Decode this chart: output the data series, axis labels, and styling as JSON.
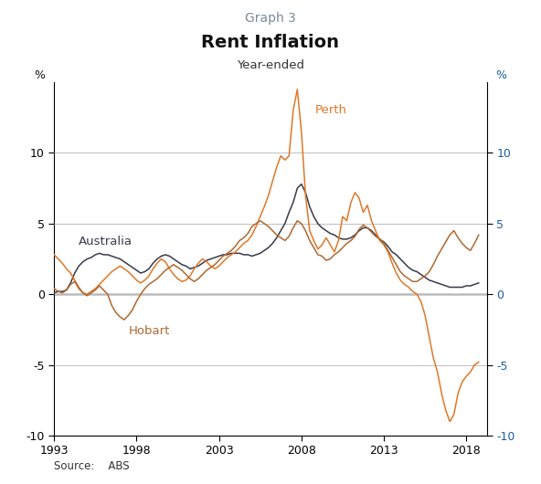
{
  "title_graph": "Graph 3",
  "title_main": "Rent Inflation",
  "title_sub": "Year-ended",
  "source": "Source:    ABS",
  "ylabel_left": "%",
  "ylabel_right": "%",
  "xlim": [
    1993.0,
    2019.25
  ],
  "ylim": [
    -10,
    15
  ],
  "yticks": [
    -10,
    -5,
    0,
    5,
    10
  ],
  "xticks": [
    1993,
    1998,
    2003,
    2008,
    2013,
    2018
  ],
  "color_australia": "#3a3a4a",
  "color_perth": "#e07828",
  "color_hobart": "#b06830",
  "color_right_axis": "#1a5fa0",
  "australia_label": "Australia",
  "perth_label": "Perth",
  "hobart_label": "Hobart",
  "australia_years": [
    1993.0,
    1993.25,
    1993.5,
    1993.75,
    1994.0,
    1994.25,
    1994.5,
    1994.75,
    1995.0,
    1995.25,
    1995.5,
    1995.75,
    1996.0,
    1996.25,
    1996.5,
    1996.75,
    1997.0,
    1997.25,
    1997.5,
    1997.75,
    1998.0,
    1998.25,
    1998.5,
    1998.75,
    1999.0,
    1999.25,
    1999.5,
    1999.75,
    2000.0,
    2000.25,
    2000.5,
    2000.75,
    2001.0,
    2001.25,
    2001.5,
    2001.75,
    2002.0,
    2002.25,
    2002.5,
    2002.75,
    2003.0,
    2003.25,
    2003.5,
    2003.75,
    2004.0,
    2004.25,
    2004.5,
    2004.75,
    2005.0,
    2005.25,
    2005.5,
    2005.75,
    2006.0,
    2006.25,
    2006.5,
    2006.75,
    2007.0,
    2007.25,
    2007.5,
    2007.75,
    2008.0,
    2008.25,
    2008.5,
    2008.75,
    2009.0,
    2009.25,
    2009.5,
    2009.75,
    2010.0,
    2010.25,
    2010.5,
    2010.75,
    2011.0,
    2011.25,
    2011.5,
    2011.75,
    2012.0,
    2012.25,
    2012.5,
    2012.75,
    2013.0,
    2013.25,
    2013.5,
    2013.75,
    2014.0,
    2014.25,
    2014.5,
    2014.75,
    2015.0,
    2015.25,
    2015.5,
    2015.75,
    2016.0,
    2016.25,
    2016.5,
    2016.75,
    2017.0,
    2017.25,
    2017.5,
    2017.75,
    2018.0,
    2018.25,
    2018.5,
    2018.75
  ],
  "australia_values": [
    0.1,
    0.2,
    0.2,
    0.3,
    0.8,
    1.5,
    2.0,
    2.3,
    2.5,
    2.6,
    2.8,
    2.9,
    2.8,
    2.8,
    2.7,
    2.6,
    2.5,
    2.3,
    2.1,
    1.9,
    1.7,
    1.5,
    1.6,
    1.8,
    2.2,
    2.5,
    2.7,
    2.8,
    2.7,
    2.5,
    2.3,
    2.1,
    2.0,
    1.8,
    1.9,
    2.0,
    2.2,
    2.4,
    2.5,
    2.6,
    2.7,
    2.8,
    2.8,
    2.9,
    2.9,
    2.9,
    2.8,
    2.8,
    2.7,
    2.8,
    2.9,
    3.1,
    3.3,
    3.6,
    4.0,
    4.5,
    5.0,
    5.8,
    6.5,
    7.5,
    7.8,
    7.2,
    6.2,
    5.5,
    5.0,
    4.7,
    4.5,
    4.3,
    4.2,
    4.0,
    3.9,
    3.9,
    4.0,
    4.2,
    4.5,
    4.7,
    4.7,
    4.5,
    4.2,
    3.9,
    3.7,
    3.4,
    3.0,
    2.8,
    2.5,
    2.2,
    1.9,
    1.7,
    1.6,
    1.4,
    1.2,
    1.0,
    0.9,
    0.8,
    0.7,
    0.6,
    0.5,
    0.5,
    0.5,
    0.5,
    0.6,
    0.6,
    0.7,
    0.8
  ],
  "perth_years": [
    1993.0,
    1993.25,
    1993.5,
    1993.75,
    1994.0,
    1994.25,
    1994.5,
    1994.75,
    1995.0,
    1995.25,
    1995.5,
    1995.75,
    1996.0,
    1996.25,
    1996.5,
    1996.75,
    1997.0,
    1997.25,
    1997.5,
    1997.75,
    1998.0,
    1998.25,
    1998.5,
    1998.75,
    1999.0,
    1999.25,
    1999.5,
    1999.75,
    2000.0,
    2000.25,
    2000.5,
    2000.75,
    2001.0,
    2001.25,
    2001.5,
    2001.75,
    2002.0,
    2002.25,
    2002.5,
    2002.75,
    2003.0,
    2003.25,
    2003.5,
    2003.75,
    2004.0,
    2004.25,
    2004.5,
    2004.75,
    2005.0,
    2005.25,
    2005.5,
    2005.75,
    2006.0,
    2006.25,
    2006.5,
    2006.75,
    2007.0,
    2007.25,
    2007.5,
    2007.75,
    2008.0,
    2008.25,
    2008.5,
    2008.75,
    2009.0,
    2009.25,
    2009.5,
    2009.75,
    2010.0,
    2010.25,
    2010.5,
    2010.75,
    2011.0,
    2011.25,
    2011.5,
    2011.75,
    2012.0,
    2012.25,
    2012.5,
    2012.75,
    2013.0,
    2013.25,
    2013.5,
    2013.75,
    2014.0,
    2014.25,
    2014.5,
    2014.75,
    2015.0,
    2015.25,
    2015.5,
    2015.75,
    2016.0,
    2016.25,
    2016.5,
    2016.75,
    2017.0,
    2017.25,
    2017.5,
    2017.75,
    2018.0,
    2018.25,
    2018.5,
    2018.75
  ],
  "perth_values": [
    2.8,
    2.5,
    2.2,
    1.8,
    1.5,
    1.0,
    0.5,
    0.1,
    0.0,
    0.2,
    0.4,
    0.7,
    1.0,
    1.3,
    1.6,
    1.8,
    2.0,
    1.8,
    1.6,
    1.3,
    1.0,
    0.8,
    1.0,
    1.3,
    1.8,
    2.2,
    2.5,
    2.3,
    1.8,
    1.4,
    1.1,
    0.9,
    1.0,
    1.3,
    1.8,
    2.2,
    2.5,
    2.3,
    2.0,
    1.8,
    2.0,
    2.3,
    2.6,
    2.8,
    3.0,
    3.3,
    3.6,
    3.8,
    4.2,
    4.8,
    5.5,
    6.2,
    7.0,
    8.0,
    9.0,
    9.8,
    9.5,
    9.8,
    13.0,
    14.5,
    11.5,
    7.0,
    4.5,
    3.8,
    3.2,
    3.5,
    4.0,
    3.5,
    3.0,
    3.8,
    5.5,
    5.2,
    6.5,
    7.2,
    6.8,
    5.8,
    6.3,
    5.2,
    4.5,
    3.8,
    3.5,
    3.0,
    2.2,
    1.5,
    1.0,
    0.7,
    0.5,
    0.2,
    0.0,
    -0.5,
    -1.5,
    -3.0,
    -4.5,
    -5.5,
    -7.0,
    -8.2,
    -9.0,
    -8.5,
    -7.0,
    -6.2,
    -5.8,
    -5.5,
    -5.0,
    -4.8
  ],
  "hobart_years": [
    1993.0,
    1993.25,
    1993.5,
    1993.75,
    1994.0,
    1994.25,
    1994.5,
    1994.75,
    1995.0,
    1995.25,
    1995.5,
    1995.75,
    1996.0,
    1996.25,
    1996.5,
    1996.75,
    1997.0,
    1997.25,
    1997.5,
    1997.75,
    1998.0,
    1998.25,
    1998.5,
    1998.75,
    1999.0,
    1999.25,
    1999.5,
    1999.75,
    2000.0,
    2000.25,
    2000.5,
    2000.75,
    2001.0,
    2001.25,
    2001.5,
    2001.75,
    2002.0,
    2002.25,
    2002.5,
    2002.75,
    2003.0,
    2003.25,
    2003.5,
    2003.75,
    2004.0,
    2004.25,
    2004.5,
    2004.75,
    2005.0,
    2005.25,
    2005.5,
    2005.75,
    2006.0,
    2006.25,
    2006.5,
    2006.75,
    2007.0,
    2007.25,
    2007.5,
    2007.75,
    2008.0,
    2008.25,
    2008.5,
    2008.75,
    2009.0,
    2009.25,
    2009.5,
    2009.75,
    2010.0,
    2010.25,
    2010.5,
    2010.75,
    2011.0,
    2011.25,
    2011.5,
    2011.75,
    2012.0,
    2012.25,
    2012.5,
    2012.75,
    2013.0,
    2013.25,
    2013.5,
    2013.75,
    2014.0,
    2014.25,
    2014.5,
    2014.75,
    2015.0,
    2015.25,
    2015.5,
    2015.75,
    2016.0,
    2016.25,
    2016.5,
    2016.75,
    2017.0,
    2017.25,
    2017.5,
    2017.75,
    2018.0,
    2018.25,
    2018.5,
    2018.75
  ],
  "hobart_values": [
    0.4,
    0.2,
    0.1,
    0.3,
    0.7,
    0.9,
    0.4,
    0.1,
    -0.1,
    0.1,
    0.3,
    0.6,
    0.3,
    0.0,
    -0.8,
    -1.3,
    -1.6,
    -1.8,
    -1.5,
    -1.1,
    -0.5,
    0.0,
    0.4,
    0.7,
    0.9,
    1.1,
    1.4,
    1.7,
    1.9,
    2.1,
    1.9,
    1.7,
    1.4,
    1.1,
    0.9,
    1.1,
    1.4,
    1.7,
    1.9,
    2.1,
    2.4,
    2.7,
    2.9,
    3.1,
    3.4,
    3.8,
    4.0,
    4.3,
    4.8,
    5.0,
    5.2,
    5.0,
    4.8,
    4.5,
    4.2,
    4.0,
    3.8,
    4.1,
    4.7,
    5.2,
    5.0,
    4.5,
    3.8,
    3.3,
    2.8,
    2.7,
    2.4,
    2.5,
    2.8,
    3.0,
    3.3,
    3.6,
    3.8,
    4.1,
    4.6,
    4.9,
    4.7,
    4.4,
    4.1,
    3.9,
    3.6,
    3.1,
    2.6,
    2.1,
    1.6,
    1.3,
    1.1,
    0.9,
    0.9,
    1.1,
    1.3,
    1.6,
    2.1,
    2.7,
    3.2,
    3.7,
    4.2,
    4.5,
    4.0,
    3.6,
    3.3,
    3.1,
    3.6,
    4.2
  ]
}
